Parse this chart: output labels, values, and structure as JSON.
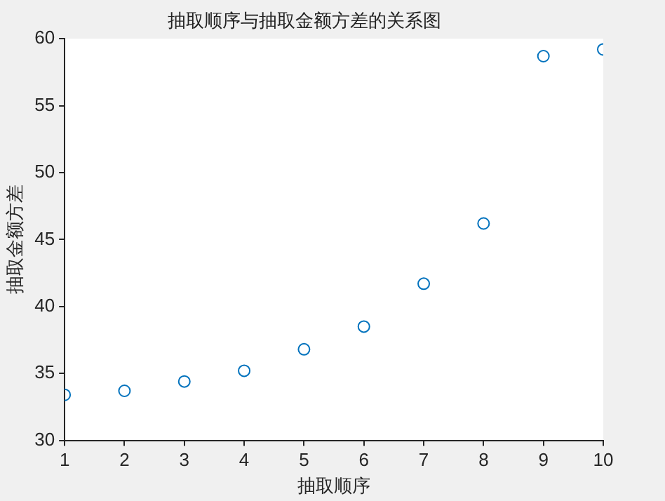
{
  "chart_data": {
    "type": "scatter",
    "title": "抽取顺序与抽取金额方差的关系图",
    "xlabel": "抽取顺序",
    "ylabel": "抽取金额方差",
    "x": [
      1,
      2,
      3,
      4,
      5,
      6,
      7,
      8,
      9,
      10
    ],
    "series": [
      {
        "color": "#0072bd",
        "values": [
          33.4,
          33.7,
          34.4,
          35.2,
          36.8,
          38.5,
          41.7,
          46.2,
          58.7,
          59.2
        ]
      }
    ],
    "xlim": [
      1,
      10
    ],
    "xticks": [
      1,
      2,
      3,
      4,
      5,
      6,
      7,
      8,
      9,
      10
    ],
    "ylim": [
      30,
      60
    ],
    "yticks": [
      30,
      35,
      40,
      45,
      50,
      55,
      60
    ],
    "grid": false,
    "legend": false,
    "marker": "circle"
  }
}
